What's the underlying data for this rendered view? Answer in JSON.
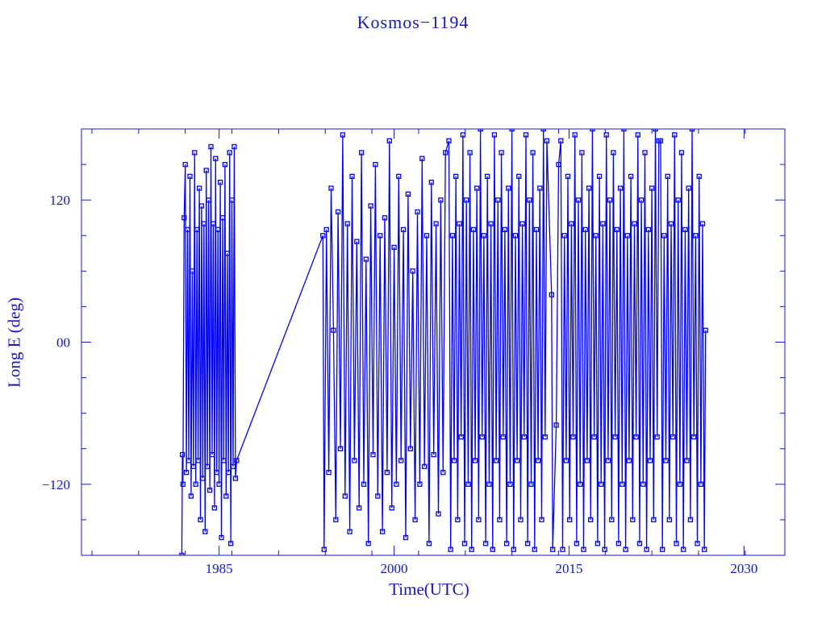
{
  "chart_data": {
    "type": "line",
    "title": "Kosmos−1194",
    "xlabel": "Time(UTC)",
    "ylabel": "Long E (deg)",
    "xlim": [
      1973.2,
      2033.5
    ],
    "ylim": [
      -180,
      180
    ],
    "xticks": [
      {
        "value": 1985,
        "label": "1985"
      },
      {
        "value": 2000,
        "label": "2000"
      },
      {
        "value": 2015,
        "label": "2015"
      },
      {
        "value": 2030,
        "label": "2030"
      }
    ],
    "yticks": [
      {
        "value": 120,
        "label": "120"
      },
      {
        "value": 0,
        "label": "00"
      },
      {
        "value": -120,
        "label": "−120"
      }
    ],
    "grid": false,
    "marker": "square",
    "color": "#0000ff",
    "series": [
      {
        "x": [
          1981.8,
          1981.85,
          1981.9,
          1982.0,
          1982.1,
          1982.2,
          1982.3,
          1982.4,
          1982.5,
          1982.6,
          1982.7,
          1982.8,
          1982.9,
          1983.0,
          1983.1,
          1983.2,
          1983.3,
          1983.4,
          1983.5,
          1983.6,
          1983.7,
          1983.8,
          1983.9,
          1984.0,
          1984.1,
          1984.2,
          1984.3,
          1984.4,
          1984.5,
          1984.6,
          1984.7,
          1984.8,
          1984.9,
          1985.0,
          1985.1,
          1985.2,
          1985.3,
          1985.4,
          1985.5,
          1985.6,
          1985.7,
          1985.8,
          1985.9,
          1986.0,
          1986.1,
          1986.2,
          1986.3,
          1986.4,
          1986.5,
          1993.9,
          1994.0,
          1994.2,
          1994.4,
          1994.6,
          1994.8,
          1995.0,
          1995.2,
          1995.4,
          1995.6,
          1995.8,
          1996.0,
          1996.2,
          1996.4,
          1996.6,
          1996.8,
          1997.0,
          1997.2,
          1997.4,
          1997.6,
          1997.8,
          1998.0,
          1998.2,
          1998.4,
          1998.6,
          1998.8,
          1999.0,
          1999.2,
          1999.4,
          1999.6,
          1999.8,
          2000.0,
          2000.2,
          2000.4,
          2000.6,
          2000.8,
          2001.0,
          2001.2,
          2001.4,
          2001.6,
          2001.8,
          2002.0,
          2002.2,
          2002.4,
          2002.6,
          2002.8,
          2003.0,
          2003.2,
          2003.4,
          2003.6,
          2003.8,
          2004.0,
          2004.2,
          2004.4,
          2004.7,
          2004.85,
          2005.0,
          2005.15,
          2005.3,
          2005.45,
          2005.6,
          2005.75,
          2005.9,
          2006.05,
          2006.2,
          2006.35,
          2006.5,
          2006.65,
          2006.8,
          2006.95,
          2007.1,
          2007.25,
          2007.4,
          2007.55,
          2007.7,
          2007.85,
          2008.0,
          2008.15,
          2008.3,
          2008.45,
          2008.6,
          2008.75,
          2008.9,
          2009.05,
          2009.2,
          2009.35,
          2009.5,
          2009.65,
          2009.8,
          2009.95,
          2010.1,
          2010.25,
          2010.4,
          2010.55,
          2010.7,
          2010.85,
          2011.0,
          2011.15,
          2011.3,
          2011.45,
          2011.6,
          2011.75,
          2011.9,
          2012.05,
          2012.2,
          2012.35,
          2012.5,
          2012.65,
          2012.8,
          2012.95,
          2013.1,
          2013.5,
          2013.6,
          2013.9,
          2014.1,
          2014.3,
          2014.45,
          2014.6,
          2014.75,
          2014.9,
          2015.05,
          2015.2,
          2015.35,
          2015.5,
          2015.65,
          2015.8,
          2015.95,
          2016.1,
          2016.25,
          2016.4,
          2016.55,
          2016.7,
          2016.85,
          2017.0,
          2017.15,
          2017.3,
          2017.45,
          2017.6,
          2017.75,
          2017.9,
          2018.05,
          2018.2,
          2018.35,
          2018.5,
          2018.65,
          2018.8,
          2018.95,
          2019.1,
          2019.25,
          2019.4,
          2019.55,
          2019.7,
          2019.85,
          2020.0,
          2020.15,
          2020.3,
          2020.45,
          2020.6,
          2020.75,
          2020.9,
          2021.05,
          2021.2,
          2021.35,
          2021.5,
          2021.65,
          2021.8,
          2021.95,
          2022.1,
          2022.25,
          2022.4,
          2022.55,
          2022.7,
          2022.85,
          2023.0,
          2023.15,
          2023.3,
          2023.45,
          2023.6,
          2023.75,
          2023.9,
          2024.05,
          2024.2,
          2024.35,
          2024.5,
          2024.65,
          2024.8,
          2024.95,
          2025.1,
          2025.25,
          2025.4,
          2025.55,
          2025.7,
          2025.85,
          2026.0,
          2026.15,
          2026.3,
          2026.45,
          2026.6,
          2026.7
        ],
        "y": [
          -180,
          -95,
          -120,
          105,
          150,
          -110,
          95,
          -100,
          140,
          -130,
          60,
          -105,
          160,
          -120,
          95,
          -100,
          130,
          -150,
          115,
          -115,
          100,
          -160,
          145,
          -105,
          120,
          -125,
          165,
          -95,
          100,
          -140,
          155,
          -110,
          95,
          -120,
          135,
          -165,
          105,
          -100,
          150,
          -130,
          75,
          -110,
          160,
          -170,
          120,
          -105,
          165,
          -115,
          -100,
          90,
          -175,
          95,
          -110,
          130,
          10,
          -150,
          110,
          -90,
          175,
          -130,
          100,
          -160,
          140,
          -100,
          85,
          -140,
          160,
          -120,
          70,
          -170,
          115,
          -95,
          150,
          -130,
          90,
          -160,
          105,
          -110,
          170,
          -140,
          80,
          -120,
          140,
          -100,
          95,
          -165,
          125,
          -90,
          60,
          -150,
          110,
          -120,
          155,
          -105,
          90,
          -170,
          135,
          -95,
          100,
          -145,
          120,
          -110,
          160,
          170,
          -175,
          90,
          -100,
          140,
          -150,
          100,
          -80,
          175,
          -170,
          120,
          -120,
          160,
          -175,
          95,
          -100,
          130,
          -150,
          180,
          -80,
          90,
          -170,
          140,
          -120,
          100,
          -175,
          175,
          -100,
          120,
          -150,
          160,
          -80,
          95,
          -170,
          130,
          -120,
          180,
          -175,
          90,
          -100,
          140,
          -150,
          100,
          -80,
          175,
          -170,
          120,
          -120,
          160,
          -175,
          95,
          -100,
          130,
          -150,
          180,
          -80,
          170,
          40,
          -175,
          -70,
          150,
          170,
          -175,
          90,
          -100,
          140,
          -150,
          100,
          -80,
          175,
          -170,
          120,
          -120,
          160,
          -175,
          95,
          -100,
          130,
          -150,
          180,
          -80,
          90,
          -170,
          140,
          -120,
          100,
          -175,
          175,
          -100,
          120,
          -150,
          160,
          -80,
          95,
          -170,
          130,
          -120,
          180,
          -175,
          90,
          -100,
          140,
          -150,
          100,
          -80,
          175,
          -170,
          120,
          -120,
          160,
          -175,
          95,
          -100,
          130,
          -150,
          180,
          -80,
          170,
          170,
          -175,
          90,
          -100,
          140,
          -150,
          100,
          -80,
          175,
          -170,
          120,
          -120,
          160,
          -175,
          95,
          -100,
          130,
          -150,
          180,
          -80,
          90,
          -170,
          140,
          -120,
          100,
          -175,
          10
        ]
      }
    ]
  }
}
